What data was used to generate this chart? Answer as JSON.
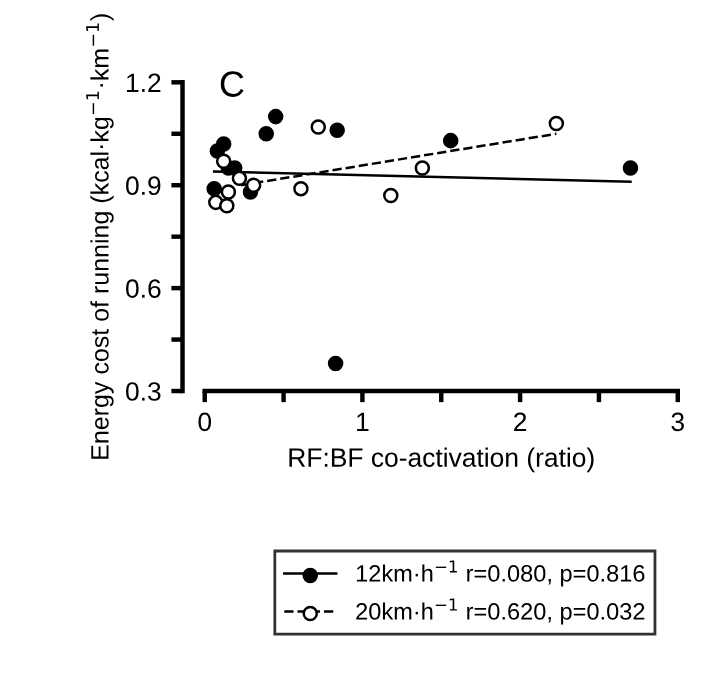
{
  "chart_data": {
    "type": "scatter",
    "title": "C",
    "xlabel": "RF:BF co-activation (ratio)",
    "ylabel": "Energy cost of running (kcal·kg$^{−1}$·km$^{−1}$)",
    "xlim": [
      0,
      3
    ],
    "xticks": [
      0,
      {
        "value": 0.5,
        "label": null
      },
      1,
      {
        "value": 1.5,
        "label": null
      },
      2,
      {
        "value": 2.5,
        "label": null
      },
      3
    ],
    "ylim": [
      0.3,
      1.2
    ],
    "yticks": [
      {
        "value": 0.3,
        "label": "0.3"
      },
      {
        "value": 0.45,
        "label": null
      },
      {
        "value": 0.6,
        "label": "0.6"
      },
      {
        "value": 0.75,
        "label": null
      },
      {
        "value": 0.9,
        "label": "0.9"
      },
      {
        "value": 1.05,
        "label": null
      },
      {
        "value": 1.2,
        "label": "1.2"
      }
    ],
    "grid": false,
    "legend": "bottom",
    "series": [
      {
        "name": "12km·h$^{−1}$ r=0.080, p=0.816",
        "marker": "circle",
        "color": "#000000",
        "x": [
          0.06,
          0.08,
          0.12,
          0.15,
          0.19,
          0.29,
          0.39,
          0.45,
          0.84,
          0.83,
          1.56,
          2.7
        ],
        "values": [
          0.89,
          1.0,
          1.02,
          0.95,
          0.95,
          0.88,
          1.05,
          1.1,
          1.06,
          0.38,
          1.03,
          0.95
        ]
      },
      {
        "name": "20km·h$^{−1}$ r=0.620, p=0.032",
        "marker": "circle",
        "color": "#ffffff",
        "x": [
          0.12,
          0.07,
          0.14,
          0.15,
          0.22,
          0.31,
          0.61,
          0.72,
          1.18,
          1.38,
          2.23
        ],
        "values": [
          0.97,
          0.85,
          0.84,
          0.88,
          0.92,
          0.9,
          0.89,
          1.07,
          0.87,
          0.95,
          1.08
        ]
      },
      {
        "type": "line",
        "line_style": "solid",
        "color": "#000000",
        "x": [
          0.06,
          2.7
        ],
        "values": [
          0.94,
          0.91
        ]
      },
      {
        "type": "line",
        "line_style": "dashed",
        "color": "#000000",
        "x": [
          0.23,
          2.23
        ],
        "values": [
          0.9,
          1.05
        ]
      }
    ]
  }
}
